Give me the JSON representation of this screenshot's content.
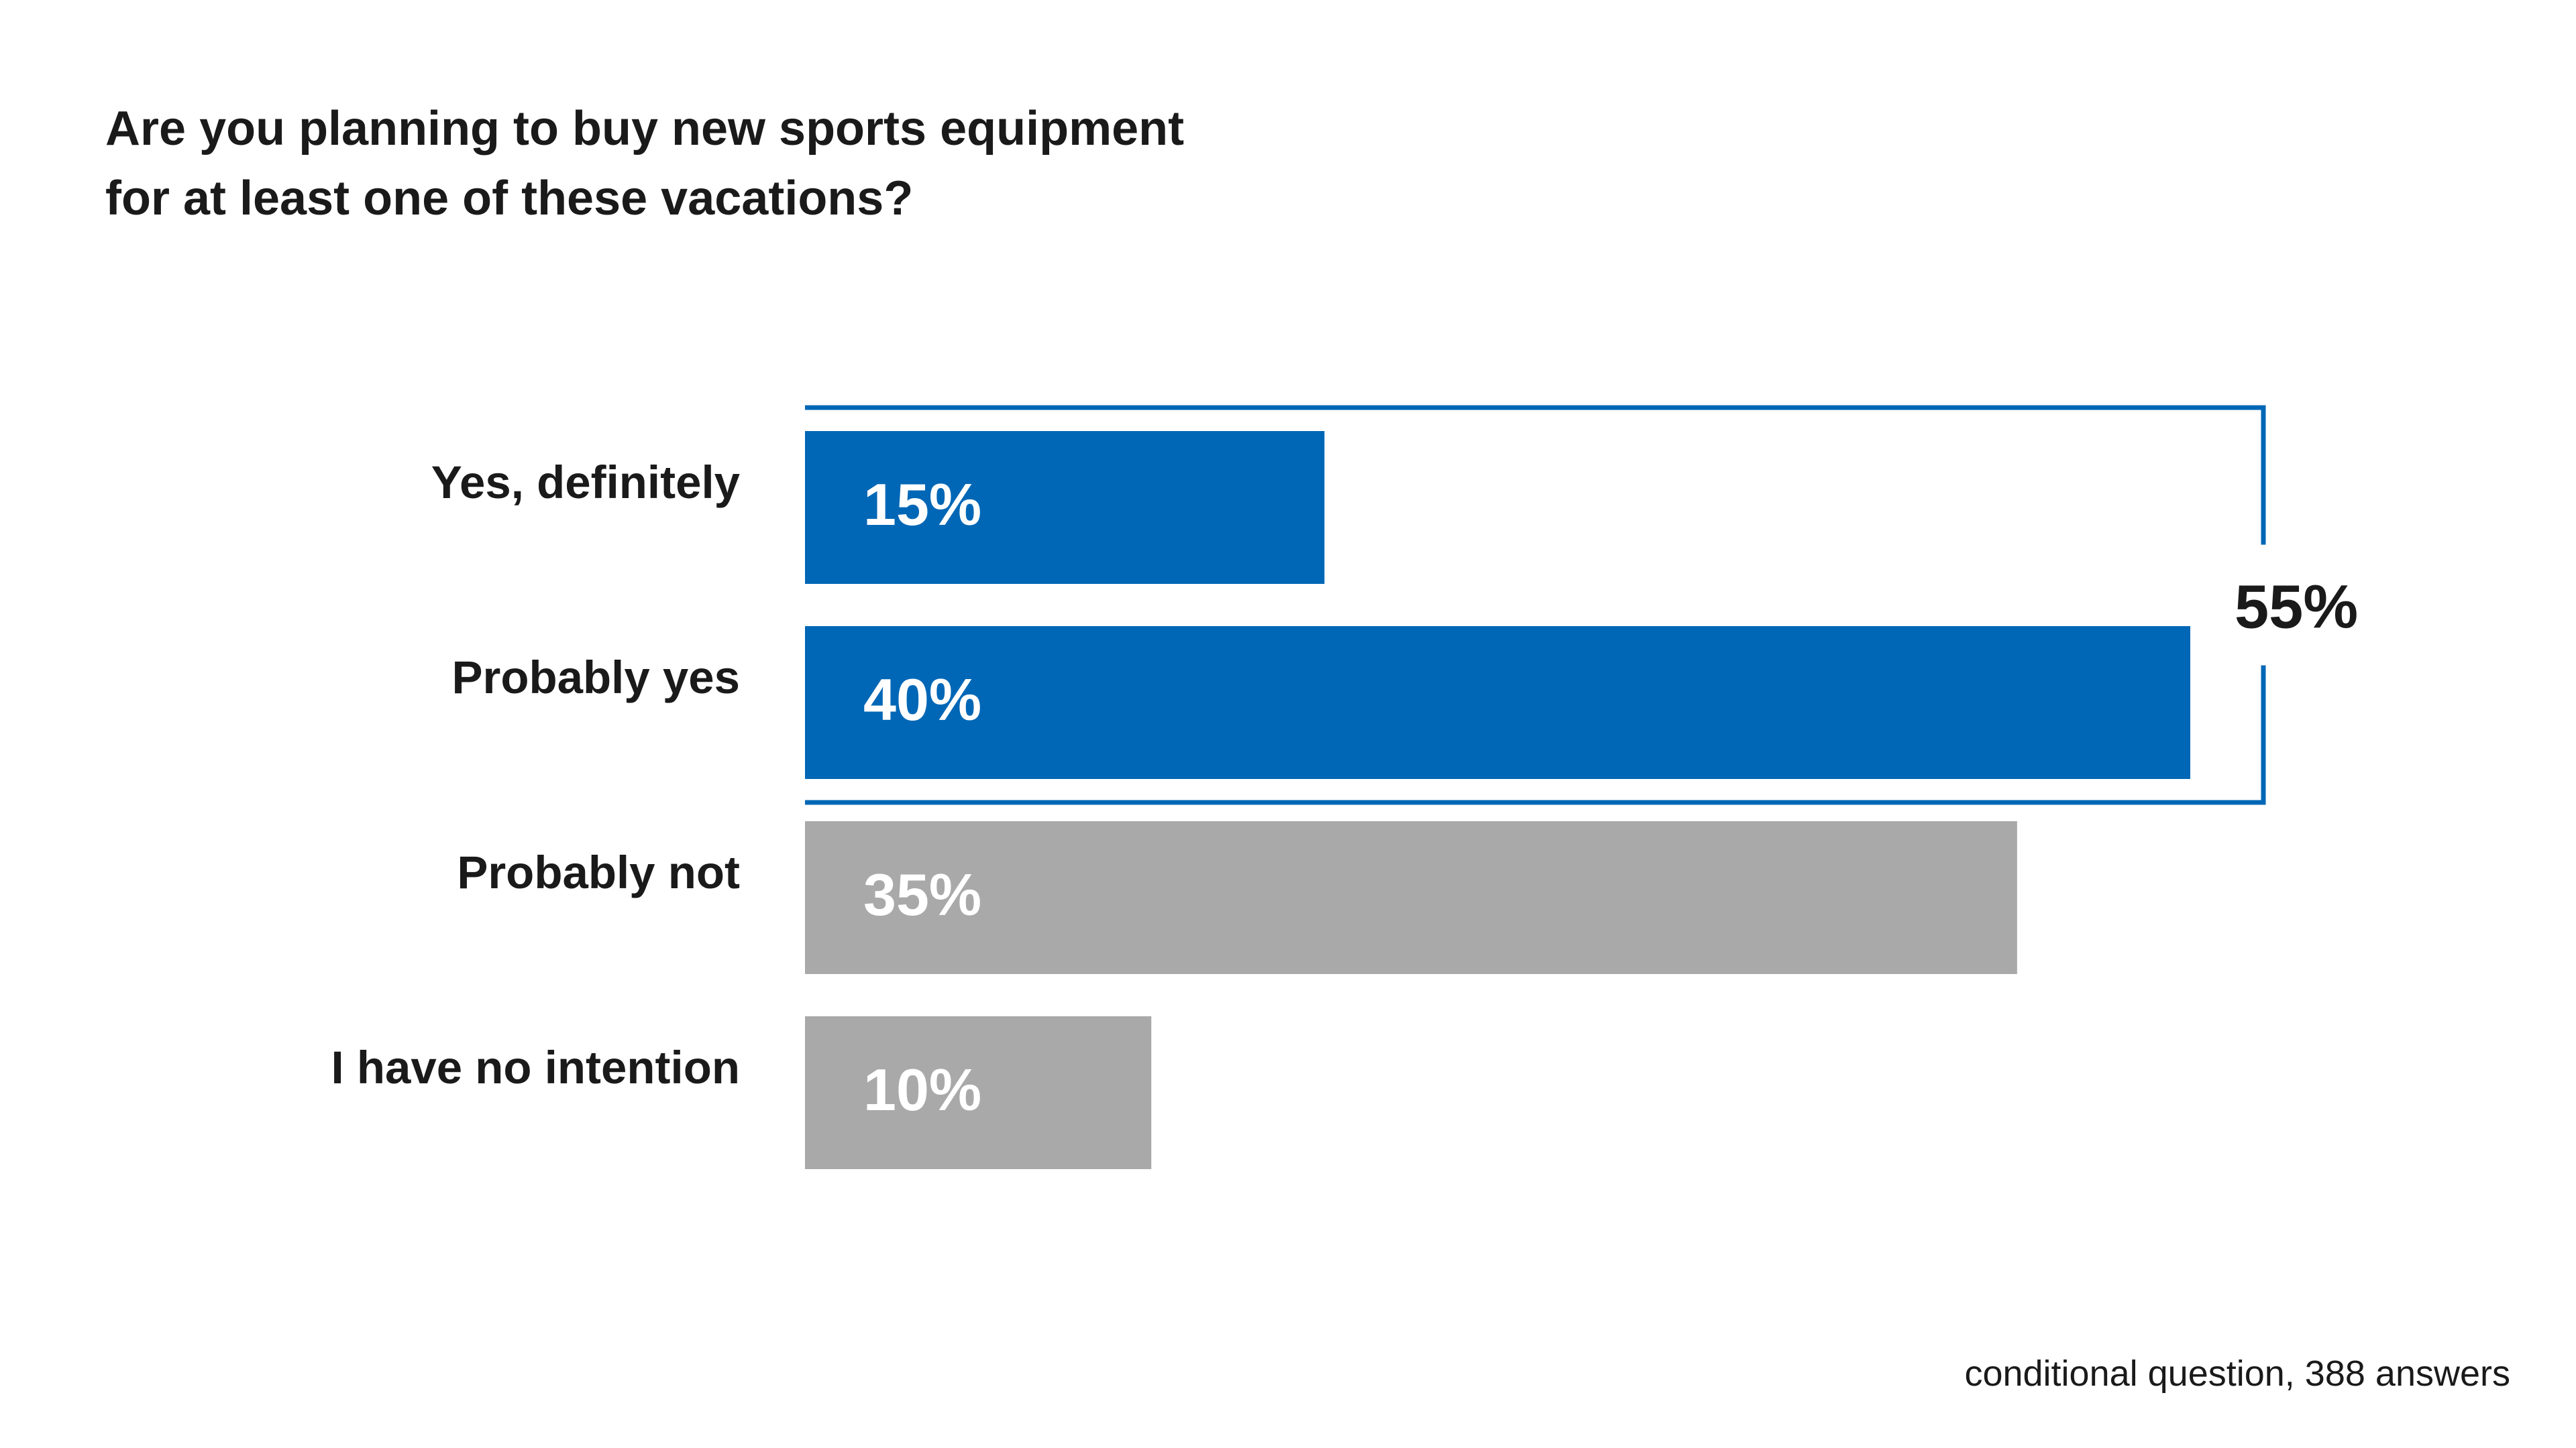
{
  "title_lines": [
    "Are you planning to buy new sports equipment",
    "for at least one of these vacations?"
  ],
  "footnote": "conditional question, 388 answers",
  "colors": {
    "positive": "#0067b6",
    "negative": "#a9a9a9",
    "text": "#1a1a1a",
    "bar_label": "#ffffff"
  },
  "chart_data": {
    "type": "bar",
    "orientation": "horizontal",
    "categories": [
      "Yes, definitely",
      "Probably yes",
      "Probably not",
      "I have no intention"
    ],
    "values": [
      15,
      40,
      35,
      10
    ],
    "value_labels": [
      "15%",
      "40%",
      "35%",
      "10%"
    ],
    "bar_colors": [
      "positive",
      "positive",
      "negative",
      "negative"
    ],
    "unit": "%",
    "xlim": [
      0,
      40
    ],
    "grid": false,
    "bracket": {
      "categories": [
        "Yes, definitely",
        "Probably yes"
      ],
      "total": 55,
      "label": "55%"
    }
  }
}
